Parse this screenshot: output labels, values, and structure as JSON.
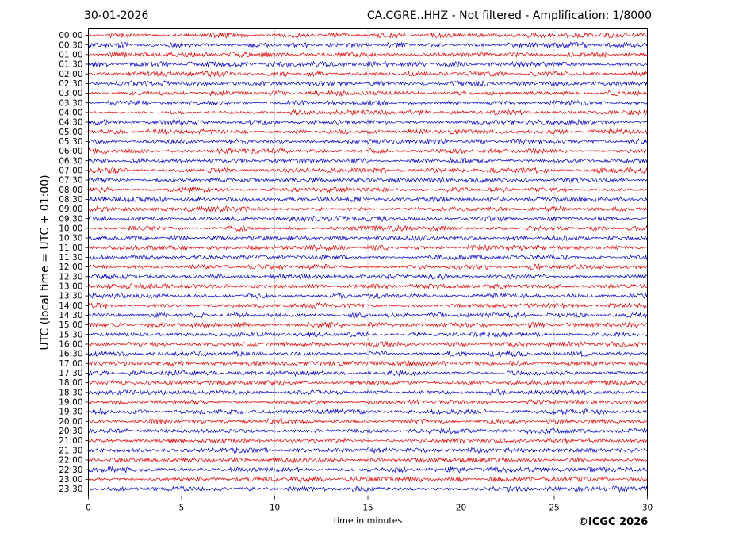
{
  "header": {
    "date": "30-01-2026",
    "title": "CA.CGRE..HHZ - Not filtered - Amplification: 1/8000"
  },
  "footer": {
    "credit": "©ICGC 2026"
  },
  "chart_data": {
    "type": "line",
    "subtype": "helicorder",
    "title": "CA.CGRE..HHZ - Not filtered - Amplification: 1/8000",
    "xlabel": "time in minutes",
    "ylabel": "UTC (local time = UTC + 01:00)",
    "xlim": [
      0,
      30
    ],
    "xticks": [
      0,
      5,
      10,
      15,
      20,
      25,
      30
    ],
    "grid": "vertical dotted lines at x ticks",
    "row_colors": [
      "#e00000",
      "#0000cc"
    ],
    "rows": [
      "00:00",
      "00:30",
      "01:00",
      "01:30",
      "02:00",
      "02:30",
      "03:00",
      "03:30",
      "04:00",
      "04:30",
      "05:00",
      "05:30",
      "06:00",
      "06:30",
      "07:00",
      "07:30",
      "08:00",
      "08:30",
      "09:00",
      "09:30",
      "10:00",
      "10:30",
      "11:00",
      "11:30",
      "12:00",
      "12:30",
      "13:00",
      "13:30",
      "14:00",
      "14:30",
      "15:00",
      "15:30",
      "16:00",
      "16:30",
      "17:00",
      "17:30",
      "18:00",
      "18:30",
      "19:00",
      "19:30",
      "20:00",
      "20:30",
      "21:00",
      "21:30",
      "22:00",
      "22:30",
      "23:00",
      "23:30"
    ]
  }
}
